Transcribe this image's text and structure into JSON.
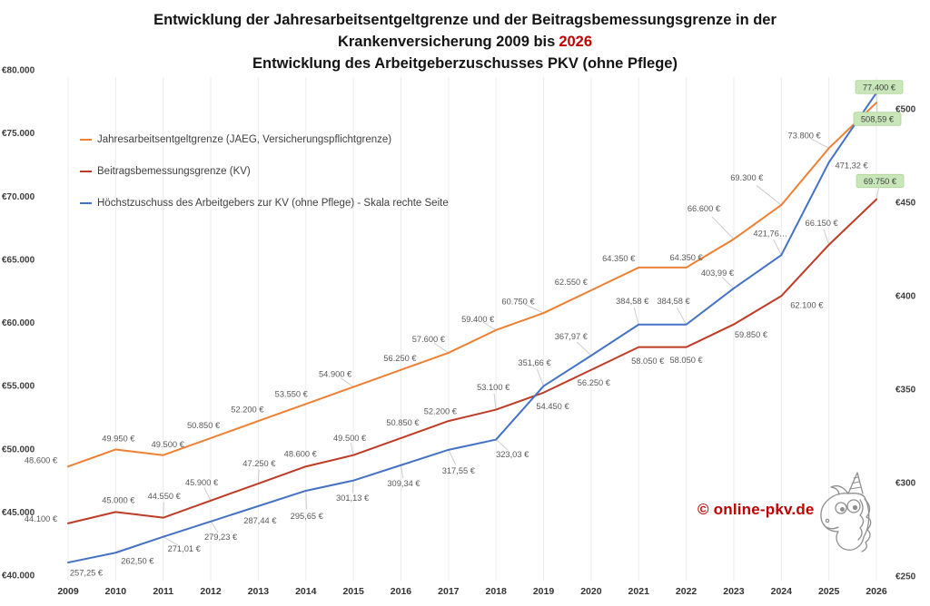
{
  "title": {
    "line1": "Entwicklung der Jahresarbeitsentgeltgrenze und der Beitragsbemessungsgrenze in der",
    "line2_prefix": "Krankenversicherung 2009 bis",
    "line2_highlight": "2026",
    "line2_highlight_color": "#C00000",
    "line3": "Entwicklung des Arbeitgeberzuschusses PKV (ohne Pflege)"
  },
  "legend": {
    "items": [
      {
        "label": "Jahresarbeitsentgeltgrenze (JAEG, Versicherungspflichtgrenze)",
        "color": "#ED8032"
      },
      {
        "label": "Beitragsbemessungsgrenze (KV)",
        "color": "#BE3B26"
      },
      {
        "label": "Höchstzuschuss des Arbeitgebers zur KV (ohne Pflege) - Skala rechte Seite",
        "color": "#4472C4"
      }
    ]
  },
  "watermark": {
    "text": "© online-pkv.de",
    "color": "#C00000"
  },
  "chart_data": {
    "type": "line",
    "title": "Entwicklung der Jahresarbeitsentgeltgrenze und der Beitragsbemessungsgrenze in der Krankenversicherung 2009 bis 2026",
    "subtitle": "Entwicklung des Arbeitgeberzuschusses PKV (ohne Pflege)",
    "grid": "vertical-only",
    "legend_position": "top-left-inside",
    "categories": [
      "2009",
      "2010",
      "2011",
      "2012",
      "2013",
      "2014",
      "2015",
      "2016",
      "2017",
      "2018",
      "2019",
      "2020",
      "2021",
      "2022",
      "2023",
      "2024",
      "2025",
      "2026"
    ],
    "left_axis": {
      "min": 40000,
      "max": 80000,
      "ticks": [
        {
          "label": "€80.000",
          "value": 80000
        },
        {
          "label": "€75.000",
          "value": 75000
        },
        {
          "label": "€70.000",
          "value": 70000
        },
        {
          "label": "€65.000",
          "value": 65000
        },
        {
          "label": "€60.000",
          "value": 60000
        },
        {
          "label": "€55.000",
          "value": 55000
        },
        {
          "label": "€50.000",
          "value": 50000
        },
        {
          "label": "€45.000",
          "value": 45000
        },
        {
          "label": "€40.000",
          "value": 40000
        }
      ]
    },
    "right_axis": {
      "min": 250,
      "max": 500,
      "ticks": [
        {
          "label": "€500",
          "value": 500
        },
        {
          "label": "€450",
          "value": 450
        },
        {
          "label": "€400",
          "value": 400
        },
        {
          "label": "€350",
          "value": 350
        },
        {
          "label": "€300",
          "value": 300
        },
        {
          "label": "€250",
          "value": 250
        }
      ]
    },
    "series": [
      {
        "name": "Jahresarbeitsentgeltgrenze (JAEG, Versicherungspflichtgrenze)",
        "axis": "left",
        "color": "#ED8032",
        "values": [
          48600,
          49950,
          49500,
          50850,
          52200,
          53550,
          54900,
          56250,
          57600,
          59400,
          60750,
          62550,
          64350,
          64350,
          66600,
          69300,
          73800,
          77400
        ],
        "labels": [
          "48.600 €",
          "49.950 €",
          "49.500 €",
          "50.850 €",
          "52.200 €",
          "53.550 €",
          "54.900 €",
          "56.250 €",
          "57.600 €",
          "59.400 €",
          "60.750 €",
          "62.550 €",
          "64.350 €",
          "64.350 €",
          "66.600 €",
          "69.300 €",
          "73.800 €",
          "77.400 €"
        ]
      },
      {
        "name": "Beitragsbemessungsgrenze (KV)",
        "axis": "left",
        "color": "#BE3B26",
        "values": [
          44100,
          45000,
          44550,
          45900,
          47250,
          48600,
          49500,
          50850,
          52200,
          53100,
          54450,
          56250,
          58050,
          58050,
          59850,
          62100,
          66150,
          69750
        ],
        "labels": [
          "44.100 €",
          "45.000 €",
          "44.550 €",
          "45.900 €",
          "47.250 €",
          "48.600 €",
          "49.500 €",
          "50.850 €",
          "52.200 €",
          "53.100 €",
          "54.450 €",
          "56.250 €",
          "58.050 €",
          "58.050 €",
          "59.850 €",
          "62.100 €",
          "66.150 €",
          "69.750 €"
        ]
      },
      {
        "name": "Höchstzuschuss des Arbeitgebers zur KV (ohne Pflege)",
        "axis": "right",
        "color": "#4472C4",
        "values": [
          257.25,
          262.5,
          271.01,
          279.23,
          287.44,
          295.65,
          301.13,
          309.34,
          317.55,
          323.03,
          351.66,
          367.97,
          384.58,
          384.58,
          403.99,
          421.76,
          471.32,
          508.59
        ],
        "labels": [
          "257,25 €",
          "262,50 €",
          "271,01 €",
          "279,23 €",
          "287,44 €",
          "295,65 €",
          "301,13 €",
          "309,34 €",
          "317,55 €",
          "323,03 €",
          "351,66 €",
          "367,97 €",
          "384,58 €",
          "384,58 €",
          "403,99 €",
          "421,76…",
          "471,32 €",
          "508,59 €"
        ]
      }
    ],
    "highlight_last_point": true,
    "highlight_bg": "#C9E6BA",
    "highlight_border": "#AAD18F",
    "label_color": "#595959",
    "grid_color": "#ECECEC"
  }
}
